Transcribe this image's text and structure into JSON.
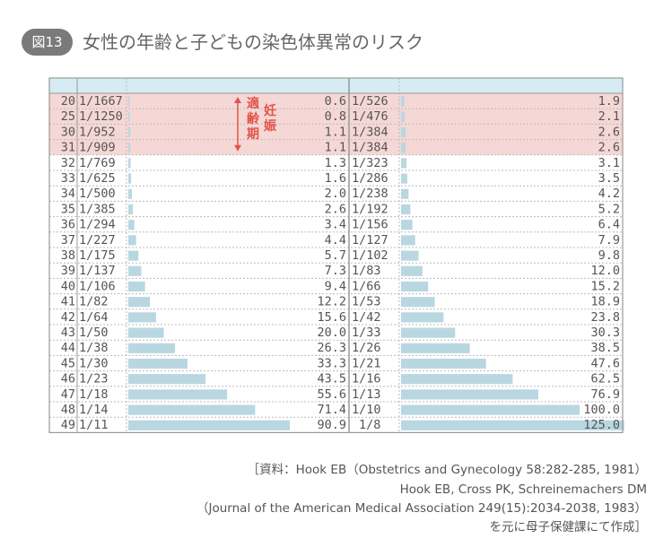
{
  "badge": "図13",
  "title": "女性の年齢と子どもの染色体異常のリスク",
  "annotation": {
    "chars": [
      "適",
      "齢",
      "期"
    ],
    "chars2": [
      "妊",
      "娠"
    ],
    "color": "#e0554a"
  },
  "colors": {
    "header": "#d7ebf2",
    "highlight": "#f5d7d5",
    "bar": "#b9d7e1",
    "border": "#999999",
    "dotted": "#bbbbbb"
  },
  "chart_data": {
    "type": "table",
    "ages": [
      "20",
      "25",
      "30",
      "31",
      "32",
      "33",
      "34",
      "35",
      "36",
      "37",
      "38",
      "39",
      "40",
      "41",
      "42",
      "43",
      "44",
      "45",
      "46",
      "47",
      "48",
      "49"
    ],
    "highlighted_ages": [
      "20",
      "25",
      "30",
      "31"
    ],
    "series": [
      {
        "ratios": [
          "1/1667",
          "1/1250",
          "1/952",
          "1/909",
          "1/769",
          "1/625",
          "1/500",
          "1/385",
          "1/294",
          "1/227",
          "1/175",
          "1/137",
          "1/106",
          "1/82",
          "1/64",
          "1/50",
          "1/38",
          "1/30",
          "1/23",
          "1/18",
          "1/14",
          "1/11"
        ],
        "values": [
          "0.6",
          "0.8",
          "1.1",
          "1.1",
          "1.3",
          "1.6",
          "2.0",
          "2.6",
          "3.4",
          "4.4",
          "5.7",
          "7.3",
          "9.4",
          "12.2",
          "15.6",
          "20.0",
          "26.3",
          "33.3",
          "43.5",
          "55.6",
          "71.4",
          "90.9"
        ]
      },
      {
        "ratios": [
          "1/526",
          "1/476",
          "1/384",
          "1/384",
          "1/323",
          "1/286",
          "1/238",
          "1/192",
          "1/156",
          "1/127",
          "1/102",
          "1/83",
          "1/66",
          "1/53",
          "1/42",
          "1/33",
          "1/26",
          "1/21",
          "1/16",
          "1/13",
          "1/10",
          "1/8"
        ],
        "values": [
          "1.9",
          "2.1",
          "2.6",
          "2.6",
          "3.1",
          "3.5",
          "4.2",
          "5.2",
          "6.4",
          "7.9",
          "9.8",
          "12.0",
          "15.2",
          "18.9",
          "23.8",
          "30.3",
          "38.5",
          "47.6",
          "62.5",
          "76.9",
          "100.0",
          "125.0"
        ]
      }
    ]
  },
  "source": {
    "line1": "［資料：Hook EB（Obstetrics and Gynecology 58:282-285, 1981）",
    "line2": "Hook EB, Cross PK, Schreinemachers DM",
    "line3": "（Journal of the American Medical Association 249(15):2034-2038, 1983）",
    "line4": "を元に母子保健課にて作成］"
  }
}
